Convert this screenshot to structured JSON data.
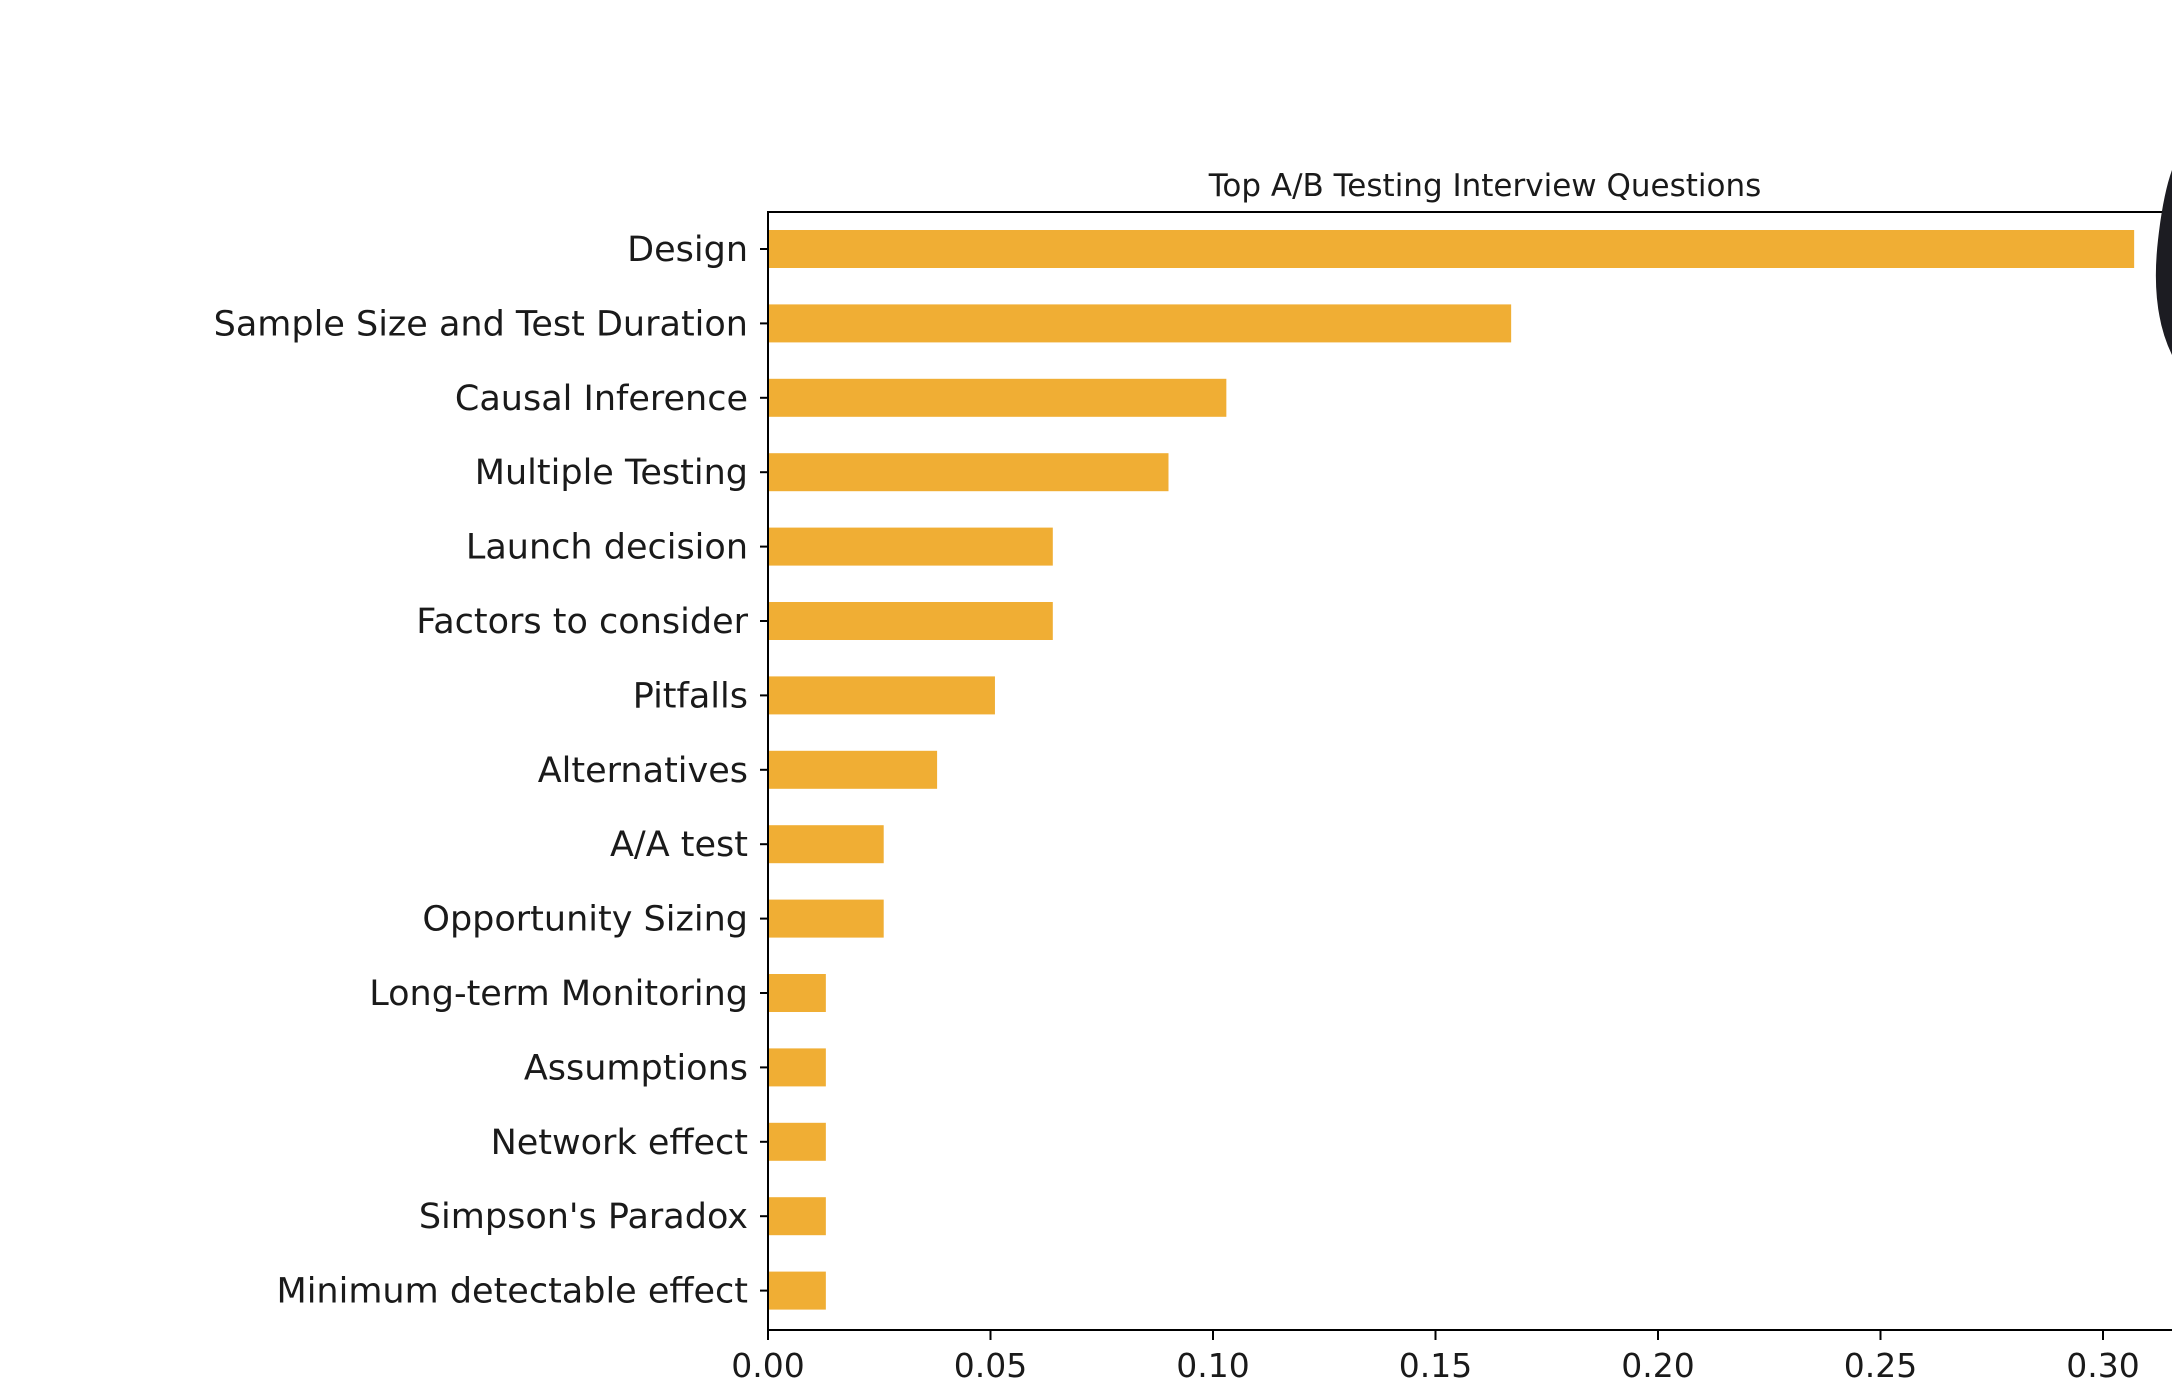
{
  "chart_data": {
    "type": "bar",
    "orientation": "horizontal",
    "title": "Top A/B Testing Interview Questions",
    "xlabel": "",
    "ylabel": "",
    "xlim": [
      0,
      0.31
    ],
    "xticks": [
      "0.00",
      "0.05",
      "0.10",
      "0.15",
      "0.20",
      "0.25",
      "0.30"
    ],
    "xtick_values": [
      0.0,
      0.05,
      0.1,
      0.15,
      0.2,
      0.25,
      0.3
    ],
    "bar_color": "#f0ae34",
    "grid": false,
    "categories": [
      "Design",
      "Sample Size and Test Duration",
      "Causal Inference",
      "Multiple Testing",
      "Launch decision",
      "Factors to consider",
      "Pitfalls",
      "Alternatives",
      "A/A test",
      "Opportunity Sizing",
      "Long-term Monitoring",
      "Assumptions",
      "Network effect",
      "Simpson's Paradox",
      "Minimum detectable effect"
    ],
    "values": [
      0.307,
      0.167,
      0.103,
      0.09,
      0.064,
      0.064,
      0.051,
      0.038,
      0.026,
      0.026,
      0.013,
      0.013,
      0.013,
      0.013,
      0.013
    ]
  }
}
